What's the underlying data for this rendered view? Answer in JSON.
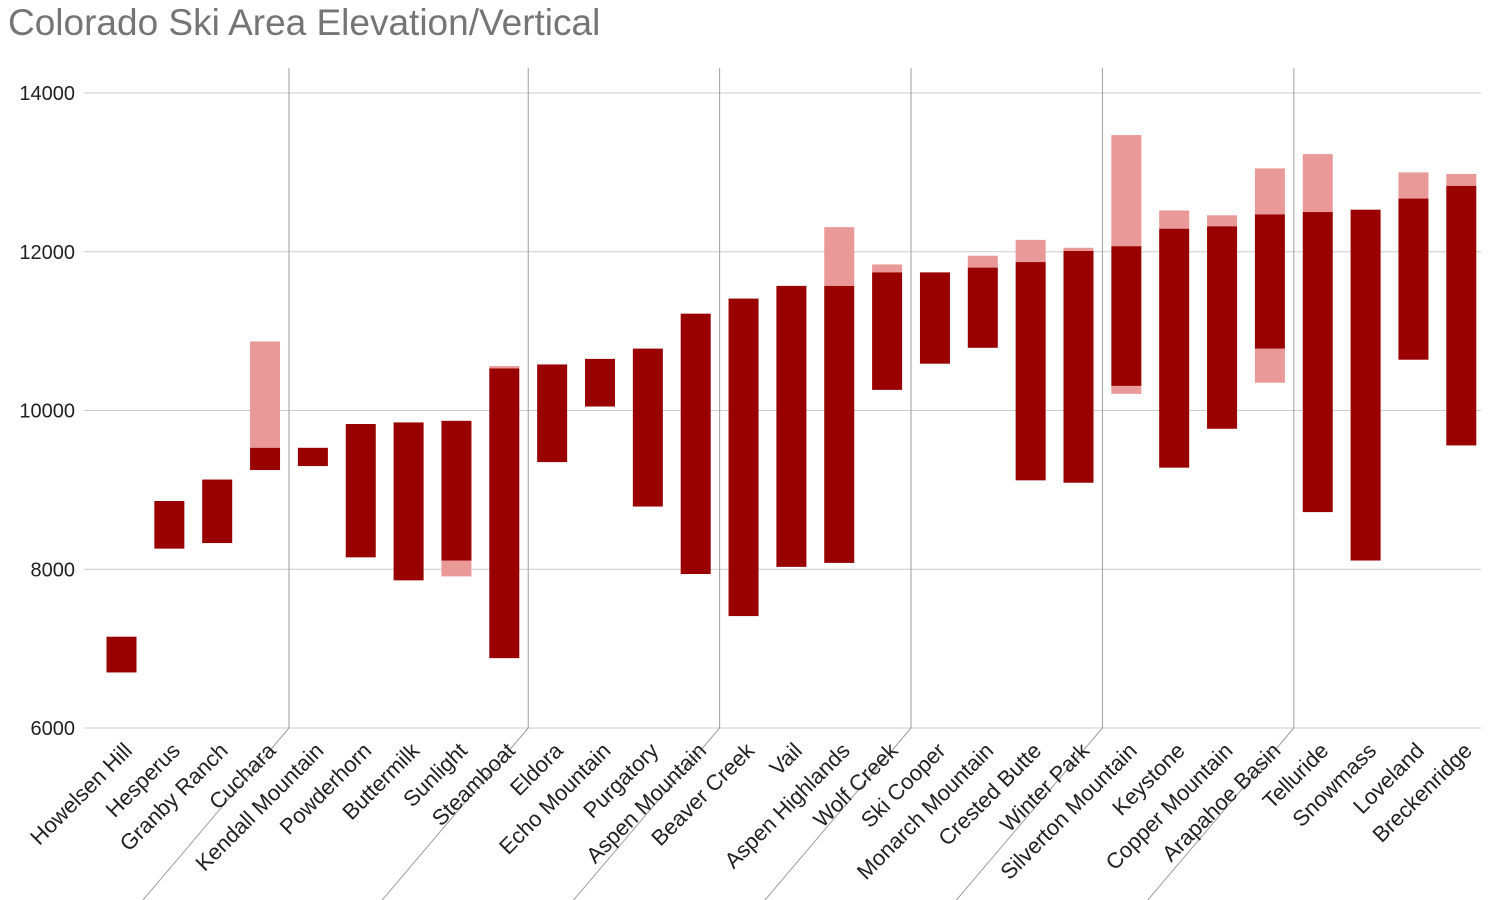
{
  "chart_data": {
    "type": "bar",
    "title": "Colorado Ski Area Elevation/Vertical",
    "xlabel": "",
    "ylabel": "",
    "ylim": [
      6000,
      14000
    ],
    "yticks": [
      6000,
      8000,
      10000,
      12000,
      14000
    ],
    "grid": true,
    "legend": "none",
    "colors": {
      "lift_served": "#990000",
      "hike_to": "#ea9999",
      "grid": "#cccccc",
      "separator": "#9e9e9e"
    },
    "series_keys": [
      "base",
      "lift_top",
      "hike_top",
      "hike_bottom"
    ],
    "category_groups": [
      4,
      5,
      4,
      4,
      4,
      4,
      4
    ],
    "categories": [
      "Howelsen Hill",
      "Hesperus",
      "Granby Ranch",
      "Cuchara",
      "Kendall Mountain",
      "Powderhorn",
      "Buttermilk",
      "Sunlight",
      "Steamboat",
      "Eldora",
      "Echo Mountain",
      "Purgatory",
      "Aspen Mountain",
      "Beaver Creek",
      "Vail",
      "Aspen Highlands",
      "Wolf Creek",
      "Ski Cooper",
      "Monarch Mountain",
      "Crested Butte",
      "Winter Park",
      "Silverton Mountain",
      "Keystone",
      "Copper Mountain",
      "Arapahoe Basin",
      "Telluride",
      "Snowmass",
      "Loveland",
      "Breckenridge"
    ],
    "ranges": [
      {
        "base": 6700,
        "lift_top": 7150,
        "hike_top": null,
        "hike_bottom": null
      },
      {
        "base": 8260,
        "lift_top": 8860,
        "hike_top": null,
        "hike_bottom": null
      },
      {
        "base": 8330,
        "lift_top": 9130,
        "hike_top": null,
        "hike_bottom": null
      },
      {
        "base": 9250,
        "lift_top": 9530,
        "hike_top": 10870,
        "hike_bottom": null
      },
      {
        "base": 9300,
        "lift_top": 9530,
        "hike_top": null,
        "hike_bottom": null
      },
      {
        "base": 8150,
        "lift_top": 9830,
        "hike_top": null,
        "hike_bottom": null
      },
      {
        "base": 7860,
        "lift_top": 9850,
        "hike_top": null,
        "hike_bottom": null
      },
      {
        "base": 8110,
        "lift_top": 9870,
        "hike_top": null,
        "hike_bottom": 7910
      },
      {
        "base": 6880,
        "lift_top": 10530,
        "hike_top": 10560,
        "hike_bottom": null
      },
      {
        "base": 9350,
        "lift_top": 10580,
        "hike_top": null,
        "hike_bottom": null
      },
      {
        "base": 10050,
        "lift_top": 10650,
        "hike_top": null,
        "hike_bottom": null
      },
      {
        "base": 8790,
        "lift_top": 10780,
        "hike_top": null,
        "hike_bottom": null
      },
      {
        "base": 7940,
        "lift_top": 11220,
        "hike_top": null,
        "hike_bottom": null
      },
      {
        "base": 7410,
        "lift_top": 11410,
        "hike_top": null,
        "hike_bottom": null
      },
      {
        "base": 8030,
        "lift_top": 11570,
        "hike_top": null,
        "hike_bottom": null
      },
      {
        "base": 8080,
        "lift_top": 11570,
        "hike_top": 12310,
        "hike_bottom": null
      },
      {
        "base": 10260,
        "lift_top": 11740,
        "hike_top": 11840,
        "hike_bottom": null
      },
      {
        "base": 10590,
        "lift_top": 11740,
        "hike_top": null,
        "hike_bottom": null
      },
      {
        "base": 10790,
        "lift_top": 11800,
        "hike_top": 11950,
        "hike_bottom": null
      },
      {
        "base": 9120,
        "lift_top": 11870,
        "hike_top": 12150,
        "hike_bottom": null
      },
      {
        "base": 9090,
        "lift_top": 12010,
        "hike_top": 12050,
        "hike_bottom": null
      },
      {
        "base": 10310,
        "lift_top": 12070,
        "hike_top": 13470,
        "hike_bottom": 10210
      },
      {
        "base": 9280,
        "lift_top": 12290,
        "hike_top": 12520,
        "hike_bottom": null
      },
      {
        "base": 9770,
        "lift_top": 12320,
        "hike_top": 12460,
        "hike_bottom": null
      },
      {
        "base": 10780,
        "lift_top": 12470,
        "hike_top": 13050,
        "hike_bottom": 10350
      },
      {
        "base": 8720,
        "lift_top": 12500,
        "hike_top": 13230,
        "hike_bottom": null
      },
      {
        "base": 8110,
        "lift_top": 12530,
        "hike_top": null,
        "hike_bottom": null
      },
      {
        "base": 10640,
        "lift_top": 12670,
        "hike_top": 13000,
        "hike_bottom": null
      },
      {
        "base": 9560,
        "lift_top": 12830,
        "hike_top": 12980,
        "hike_bottom": null
      }
    ]
  }
}
